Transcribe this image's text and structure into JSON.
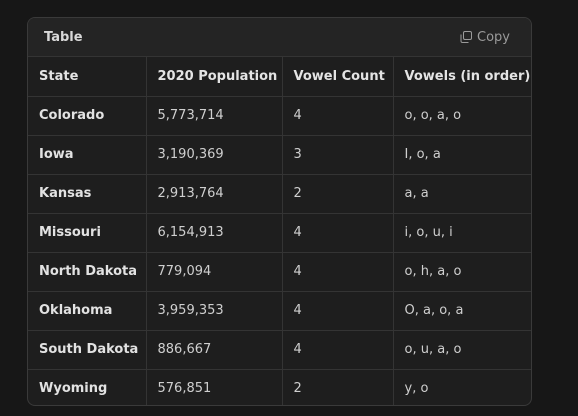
{
  "card": {
    "title": "Table",
    "copy_label": "Copy",
    "copy_icon": "copy-icon"
  },
  "table": {
    "headers": [
      "State",
      "2020 Population",
      "Vowel Count",
      "Vowels (in order)"
    ],
    "rows": [
      [
        "Colorado",
        "5,773,714",
        "4",
        "o, o, a, o"
      ],
      [
        "Iowa",
        "3,190,369",
        "3",
        "I, o, a"
      ],
      [
        "Kansas",
        "2,913,764",
        "2",
        "a, a"
      ],
      [
        "Missouri",
        "6,154,913",
        "4",
        "i, o, u, i"
      ],
      [
        "North Dakota",
        "779,094",
        "4",
        "o, h, a, o"
      ],
      [
        "Oklahoma",
        "3,959,353",
        "4",
        "O, a, o, a"
      ],
      [
        "South Dakota",
        "886,667",
        "4",
        "o, u, a, o"
      ],
      [
        "Wyoming",
        "576,851",
        "2",
        "y, o"
      ]
    ]
  }
}
